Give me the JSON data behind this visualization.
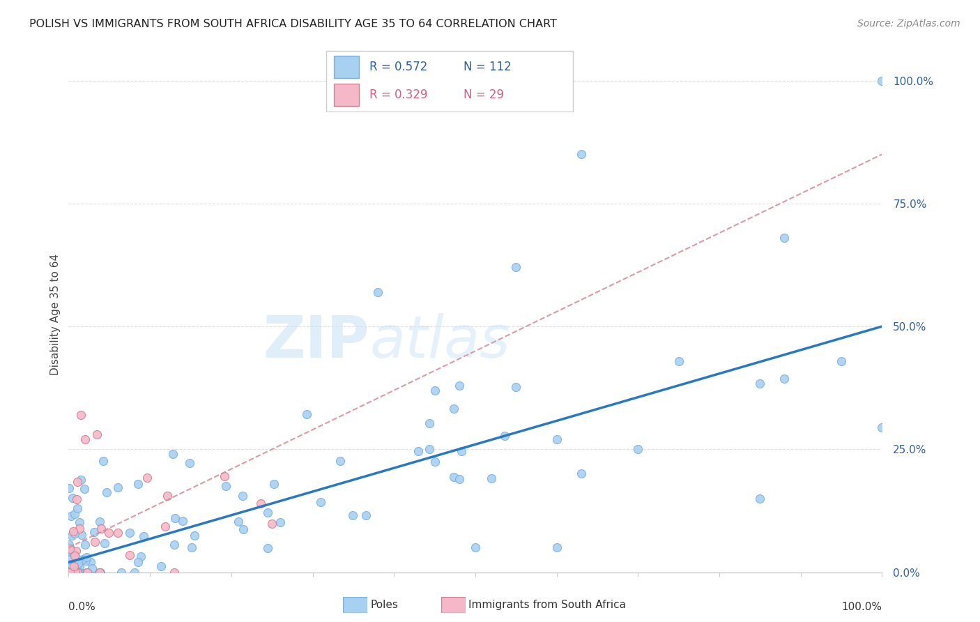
{
  "title": "POLISH VS IMMIGRANTS FROM SOUTH AFRICA DISABILITY AGE 35 TO 64 CORRELATION CHART",
  "source": "Source: ZipAtlas.com",
  "ylabel": "Disability Age 35 to 64",
  "legend_label1": "Poles",
  "legend_label2": "Immigrants from South Africa",
  "r1": 0.572,
  "n1": 112,
  "r2": 0.329,
  "n2": 29,
  "color_poles": "#a8d0f0",
  "color_sa": "#f5b8c8",
  "color_line1": "#2979c0",
  "color_line2": "#d48898",
  "yticks": [
    "0.0%",
    "25.0%",
    "50.0%",
    "75.0%",
    "100.0%"
  ],
  "ytick_vals": [
    0,
    25,
    50,
    75,
    100
  ],
  "grid_color": "#e0e0e0",
  "bg_color": "#ffffff",
  "title_color": "#222222",
  "source_color": "#888888",
  "tick_color": "#3060a0"
}
